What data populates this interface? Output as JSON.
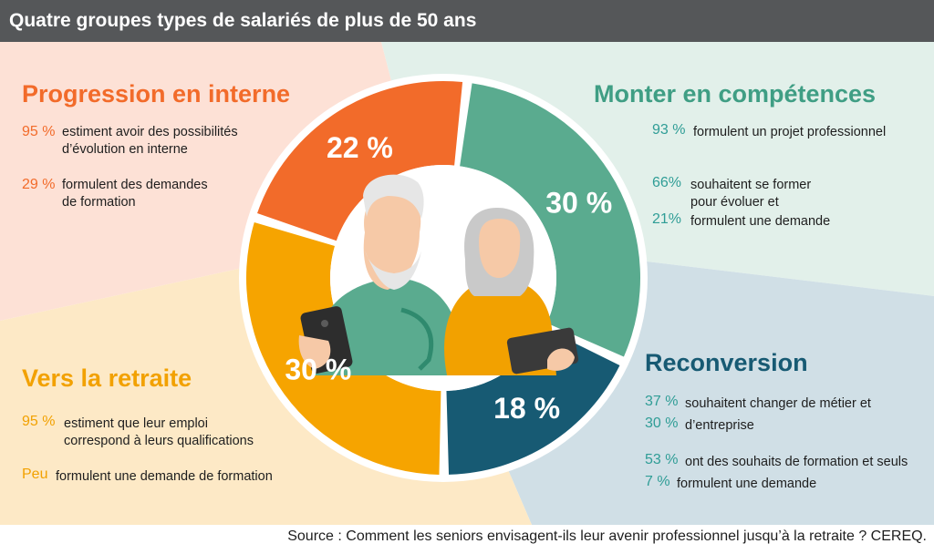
{
  "title": "Quatre groupes types de salariés de plus de 50 ans",
  "source": "Source : Comment les seniors envisagent-ils leur avenir professionnel jusqu’à la retraite ? CEREQ.",
  "colors": {
    "progression": "#f26b2a",
    "competences": "#5aab8f",
    "reconversion": "#175a73",
    "retraite": "#f6a400"
  },
  "groups": {
    "progression": {
      "title": "Progression en interne",
      "stats": [
        {
          "value": "95 %",
          "text": [
            "estiment avoir des possibilités",
            "d’évolution en interne"
          ]
        },
        {
          "value": "29 %",
          "text": [
            "formulent des demandes",
            "de formation"
          ]
        }
      ]
    },
    "competences": {
      "title": "Monter en compétences",
      "stats": [
        {
          "value": "93 %",
          "text": [
            "formulent un projet professionnel"
          ]
        },
        {
          "value": "66%",
          "text": [
            "souhaitent se former",
            "pour évoluer et"
          ]
        },
        {
          "value": "21%",
          "text": [
            "formulent une demande"
          ]
        }
      ]
    },
    "reconversion": {
      "title": "Reconversion",
      "stats": [
        {
          "value": "37 %",
          "text": [
            "souhaitent changer de métier et"
          ]
        },
        {
          "value": "30 %",
          "text": [
            "d’entreprise"
          ]
        },
        {
          "value": "53 %",
          "text": [
            "ont des souhaits de formation et seuls"
          ]
        },
        {
          "value": "7 %",
          "text": [
            "formulent une demande"
          ]
        }
      ]
    },
    "retraite": {
      "title": "Vers la retraite",
      "stats": [
        {
          "value": "95 %",
          "text": [
            "estiment que leur emploi",
            "correspond à leurs qualifications"
          ]
        },
        {
          "value": "Peu",
          "text": [
            "formulent une demande de formation"
          ]
        }
      ]
    }
  },
  "chart_data": {
    "type": "pie",
    "categories": [
      "Monter en compétences",
      "Reconversion",
      "Vers la retraite",
      "Progression en interne"
    ],
    "values": [
      30,
      18,
      30,
      22
    ],
    "labels": [
      "30 %",
      "18 %",
      "30 %",
      "22 %"
    ]
  }
}
